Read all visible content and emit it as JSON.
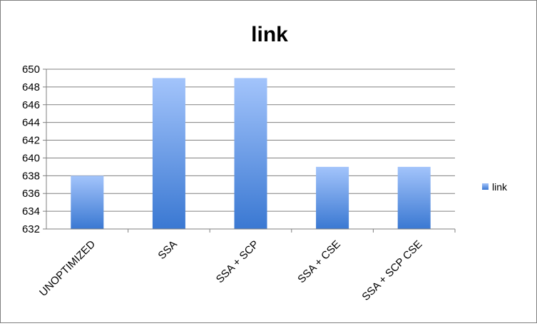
{
  "chart_data": {
    "type": "bar",
    "title": "link",
    "categories": [
      "UNOPTIMIZED",
      "SSA",
      "SSA + SCP",
      "SSA + CSE",
      "SSA + SCP CSE"
    ],
    "series": [
      {
        "name": "link",
        "values": [
          638,
          649,
          649,
          639,
          639
        ],
        "color": "#5b8fd8"
      }
    ],
    "ylim": [
      632,
      650
    ],
    "yticks": [
      632,
      634,
      636,
      638,
      640,
      642,
      644,
      646,
      648,
      650
    ],
    "grid": true,
    "legend_position": "right"
  }
}
